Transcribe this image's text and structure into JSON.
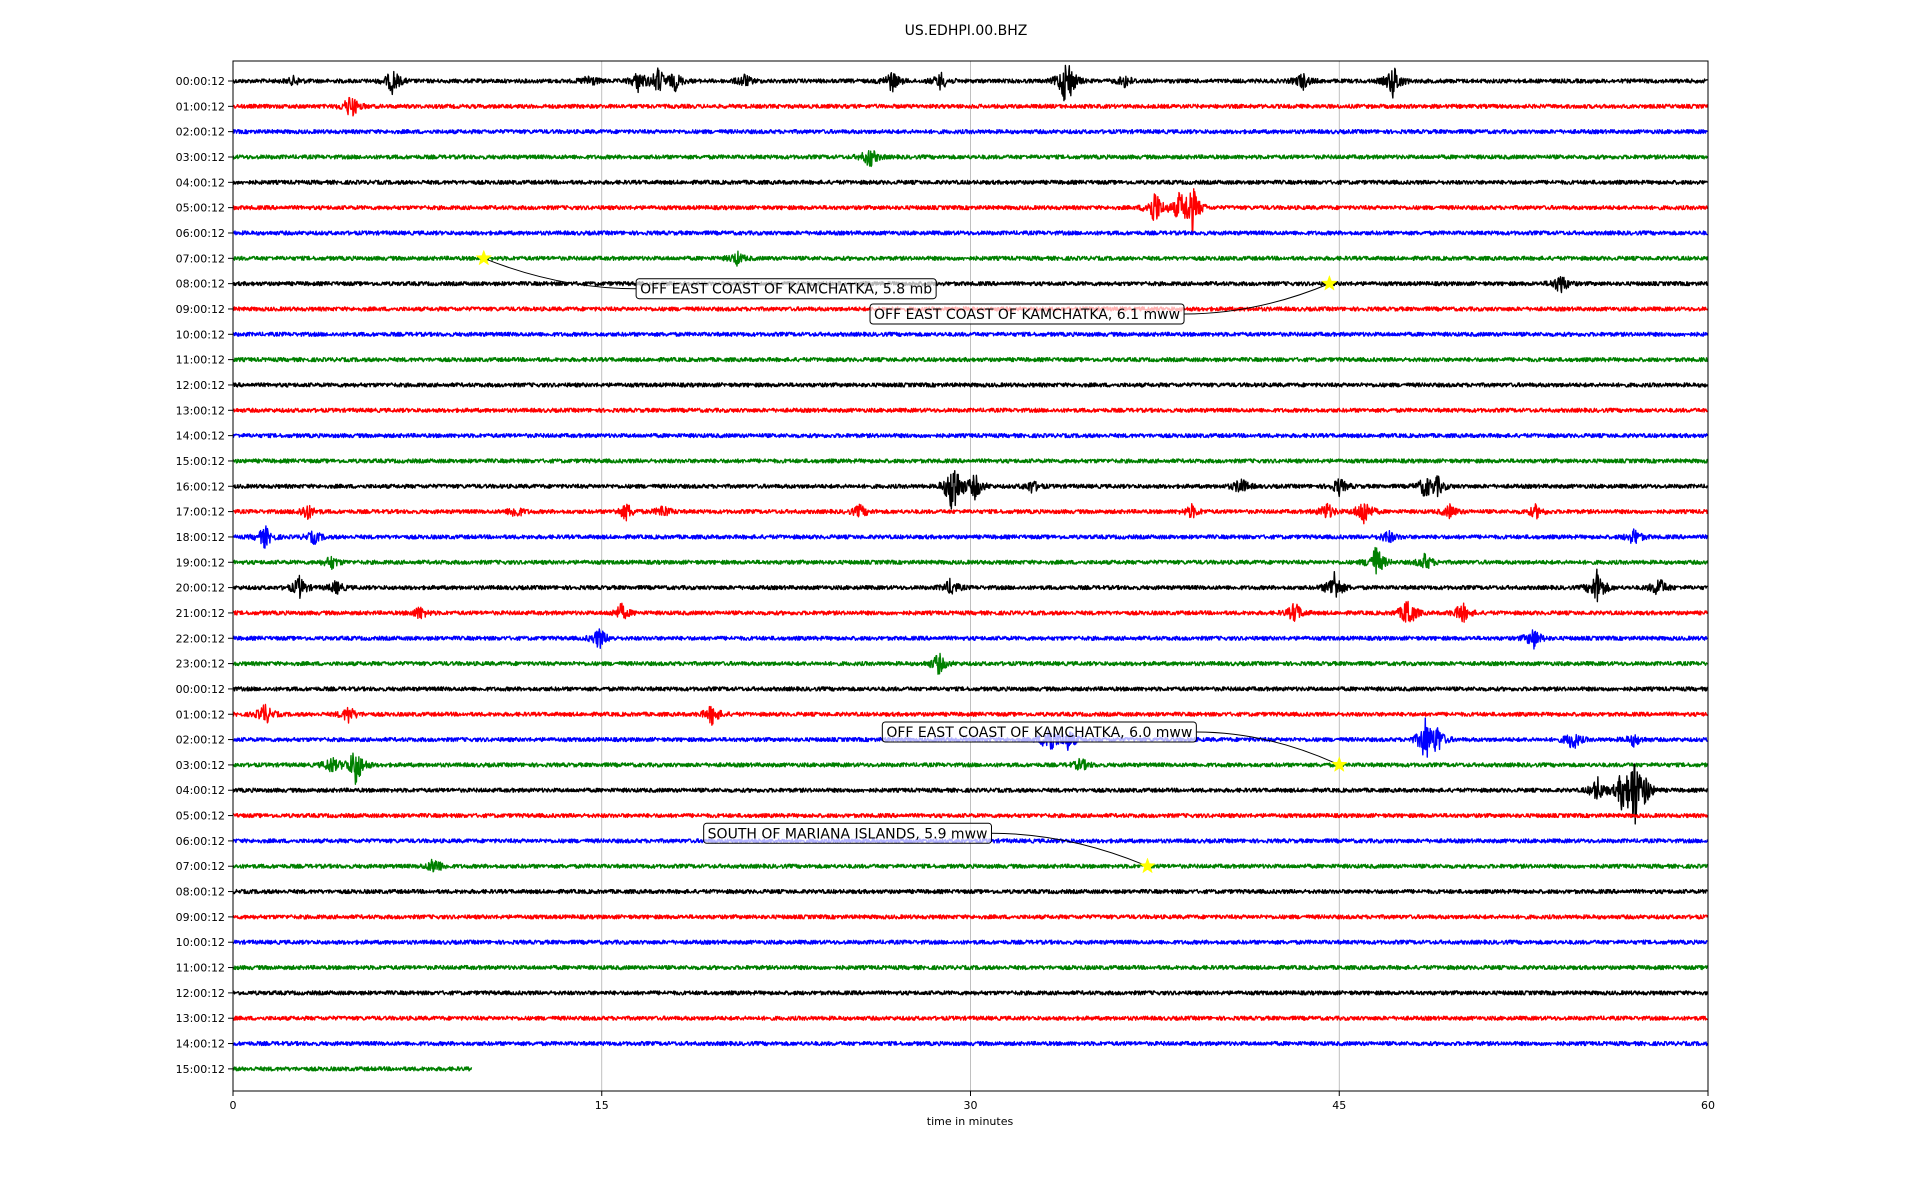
{
  "chart_data": {
    "type": "line",
    "title": "US.EDHPI.00.BHZ",
    "xlabel": "time in minutes",
    "ylabel": "",
    "xlim": [
      0,
      60
    ],
    "x_ticks": [
      "0",
      "15",
      "30",
      "45",
      "60"
    ],
    "grid": "vertical gridlines at 15, 30, 45",
    "row_labels": [
      "00:00:12",
      "01:00:12",
      "02:00:12",
      "03:00:12",
      "04:00:12",
      "05:00:12",
      "06:00:12",
      "07:00:12",
      "08:00:12",
      "09:00:12",
      "10:00:12",
      "11:00:12",
      "12:00:12",
      "13:00:12",
      "14:00:12",
      "15:00:12",
      "16:00:12",
      "17:00:12",
      "18:00:12",
      "19:00:12",
      "20:00:12",
      "21:00:12",
      "22:00:12",
      "23:00:12",
      "00:00:12",
      "01:00:12",
      "02:00:12",
      "03:00:12",
      "04:00:12",
      "05:00:12",
      "06:00:12",
      "07:00:12",
      "08:00:12",
      "09:00:12",
      "10:00:12",
      "11:00:12",
      "12:00:12",
      "13:00:12",
      "14:00:12",
      "15:00:12"
    ],
    "trace_colors": [
      "#000000",
      "#ff0000",
      "#0000ff",
      "#008000"
    ],
    "last_row_end_minutes": 9.7,
    "bursts": [
      {
        "row": 0,
        "minutes": [
          2.5,
          6.5,
          14.5,
          16.5,
          17.3,
          18.0,
          20.8,
          26.8,
          28.8,
          33.8,
          34.0,
          36.3,
          43.5,
          47.2
        ],
        "amplitude": [
          0.2,
          0.6,
          0.3,
          0.5,
          0.6,
          0.4,
          0.3,
          0.5,
          0.4,
          0.6,
          0.7,
          0.3,
          0.4,
          0.8
        ]
      },
      {
        "row": 1,
        "minutes": [
          4.8
        ],
        "amplitude": [
          0.6
        ]
      },
      {
        "row": 3,
        "minutes": [
          25.9
        ],
        "amplitude": [
          0.5
        ]
      },
      {
        "row": 5,
        "minutes": [
          37.5,
          38.5,
          39.0
        ],
        "amplitude": [
          0.9,
          0.6,
          1.2
        ]
      },
      {
        "row": 7,
        "minutes": [
          20.5
        ],
        "amplitude": [
          0.3
        ]
      },
      {
        "row": 8,
        "minutes": [
          54.0
        ],
        "amplitude": [
          0.5
        ]
      },
      {
        "row": 16,
        "minutes": [
          29.3,
          30.2,
          32.5,
          41.0,
          45.0,
          48.5,
          49.0
        ],
        "amplitude": [
          1.6,
          0.6,
          0.3,
          0.4,
          0.4,
          0.5,
          0.4
        ]
      },
      {
        "row": 17,
        "minutes": [
          3.0,
          11.5,
          16.0,
          17.5,
          25.5,
          39.0,
          44.5,
          46.0,
          49.5,
          53.0
        ],
        "amplitude": [
          0.4,
          0.3,
          0.4,
          0.3,
          0.3,
          0.3,
          0.4,
          0.7,
          0.3,
          0.3
        ]
      },
      {
        "row": 18,
        "minutes": [
          1.3,
          3.3,
          47.0,
          57.0
        ],
        "amplitude": [
          0.5,
          0.3,
          0.3,
          0.4
        ]
      },
      {
        "row": 19,
        "minutes": [
          4.0,
          46.5,
          48.5
        ],
        "amplitude": [
          0.3,
          0.8,
          0.4
        ]
      },
      {
        "row": 20,
        "minutes": [
          2.7,
          4.2,
          29.2,
          44.8,
          55.5,
          58.0
        ],
        "amplitude": [
          0.5,
          0.3,
          0.4,
          0.8,
          0.9,
          0.5
        ]
      },
      {
        "row": 21,
        "minutes": [
          7.6,
          15.8,
          43.2,
          47.8,
          50.0
        ],
        "amplitude": [
          0.3,
          0.4,
          0.5,
          0.8,
          0.5
        ]
      },
      {
        "row": 22,
        "minutes": [
          14.9,
          52.9
        ],
        "amplitude": [
          0.5,
          0.5
        ]
      },
      {
        "row": 23,
        "minutes": [
          28.7
        ],
        "amplitude": [
          0.5
        ]
      },
      {
        "row": 25,
        "minutes": [
          1.3,
          4.7,
          19.5
        ],
        "amplitude": [
          0.5,
          0.4,
          0.5
        ]
      },
      {
        "row": 26,
        "minutes": [
          33.2,
          34.0,
          48.5,
          49.0,
          54.5,
          57.0
        ],
        "amplitude": [
          0.8,
          0.5,
          1.0,
          0.6,
          0.5,
          0.3
        ]
      },
      {
        "row": 27,
        "minutes": [
          4.0,
          5.0,
          34.5
        ],
        "amplitude": [
          0.4,
          1.0,
          0.3
        ]
      },
      {
        "row": 28,
        "minutes": [
          55.5,
          56.5,
          57.0,
          57.5
        ],
        "amplitude": [
          0.6,
          0.8,
          1.8,
          0.5
        ]
      },
      {
        "row": 31,
        "minutes": [
          8.2
        ],
        "amplitude": [
          0.4
        ]
      }
    ],
    "events": [
      {
        "label": "OFF EAST COAST OF KAMCHATKA, 5.8 mb",
        "row": 7,
        "minute": 10.2,
        "label_row": 8.2,
        "label_minute": 22.5
      },
      {
        "label": "OFF EAST COAST OF KAMCHATKA, 6.1 mww",
        "row": 8,
        "minute": 44.6,
        "label_row": 9.2,
        "label_minute": 32.3
      },
      {
        "label": "OFF EAST COAST OF KAMCHATKA, 6.0 mww",
        "row": 27,
        "minute": 45.0,
        "label_row": 25.7,
        "label_minute": 32.8
      },
      {
        "label": "SOUTH OF MARIANA ISLANDS, 5.9 mww",
        "row": 31,
        "minute": 37.2,
        "label_row": 29.7,
        "label_minute": 25.0
      }
    ]
  }
}
